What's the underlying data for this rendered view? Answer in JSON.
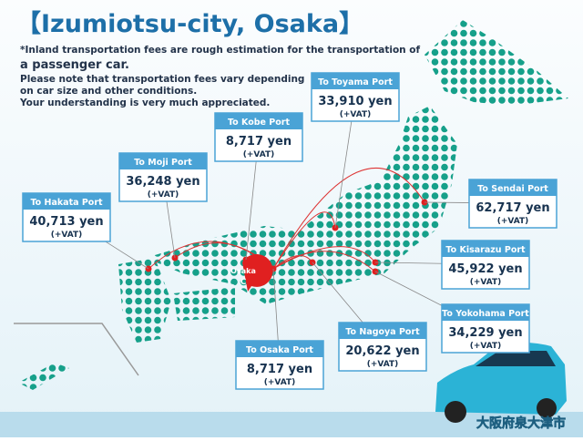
{
  "header": {
    "title": "【Izumiotsu-city, Osaka】"
  },
  "notes": [
    "*Inland transportation fees are rough estimation for the transportation of",
    "a passenger car.",
    "Please note that transportation fees vary depending",
    "on car size and other conditions.",
    "Your understanding is very much appreciated."
  ],
  "origin": {
    "label": "Osaka",
    "mark": "C"
  },
  "ports": [
    {
      "name": "To Toyama Port",
      "price": "33,910 yen",
      "vat": "(+VAT)"
    },
    {
      "name": "To Kobe Port",
      "price": "8,717 yen",
      "vat": "(+VAT)"
    },
    {
      "name": "To Moji Port",
      "price": "36,248 yen",
      "vat": "(+VAT)"
    },
    {
      "name": "To Hakata Port",
      "price": "40,713 yen",
      "vat": "(+VAT)"
    },
    {
      "name": "To Sendai Port",
      "price": "62,717 yen",
      "vat": "(+VAT)"
    },
    {
      "name": "To Kisarazu Port",
      "price": "45,922 yen",
      "vat": "(+VAT)"
    },
    {
      "name": "To Yokohama Port",
      "price": "34,229 yen",
      "vat": "(+VAT)"
    },
    {
      "name": "To Nagoya Port",
      "price": "20,622 yen",
      "vat": "(+VAT)"
    },
    {
      "name": "To Osaka Port",
      "price": "8,717 yen",
      "vat": "(+VAT)"
    }
  ],
  "footer": {
    "location": "大阪府泉大津市"
  }
}
